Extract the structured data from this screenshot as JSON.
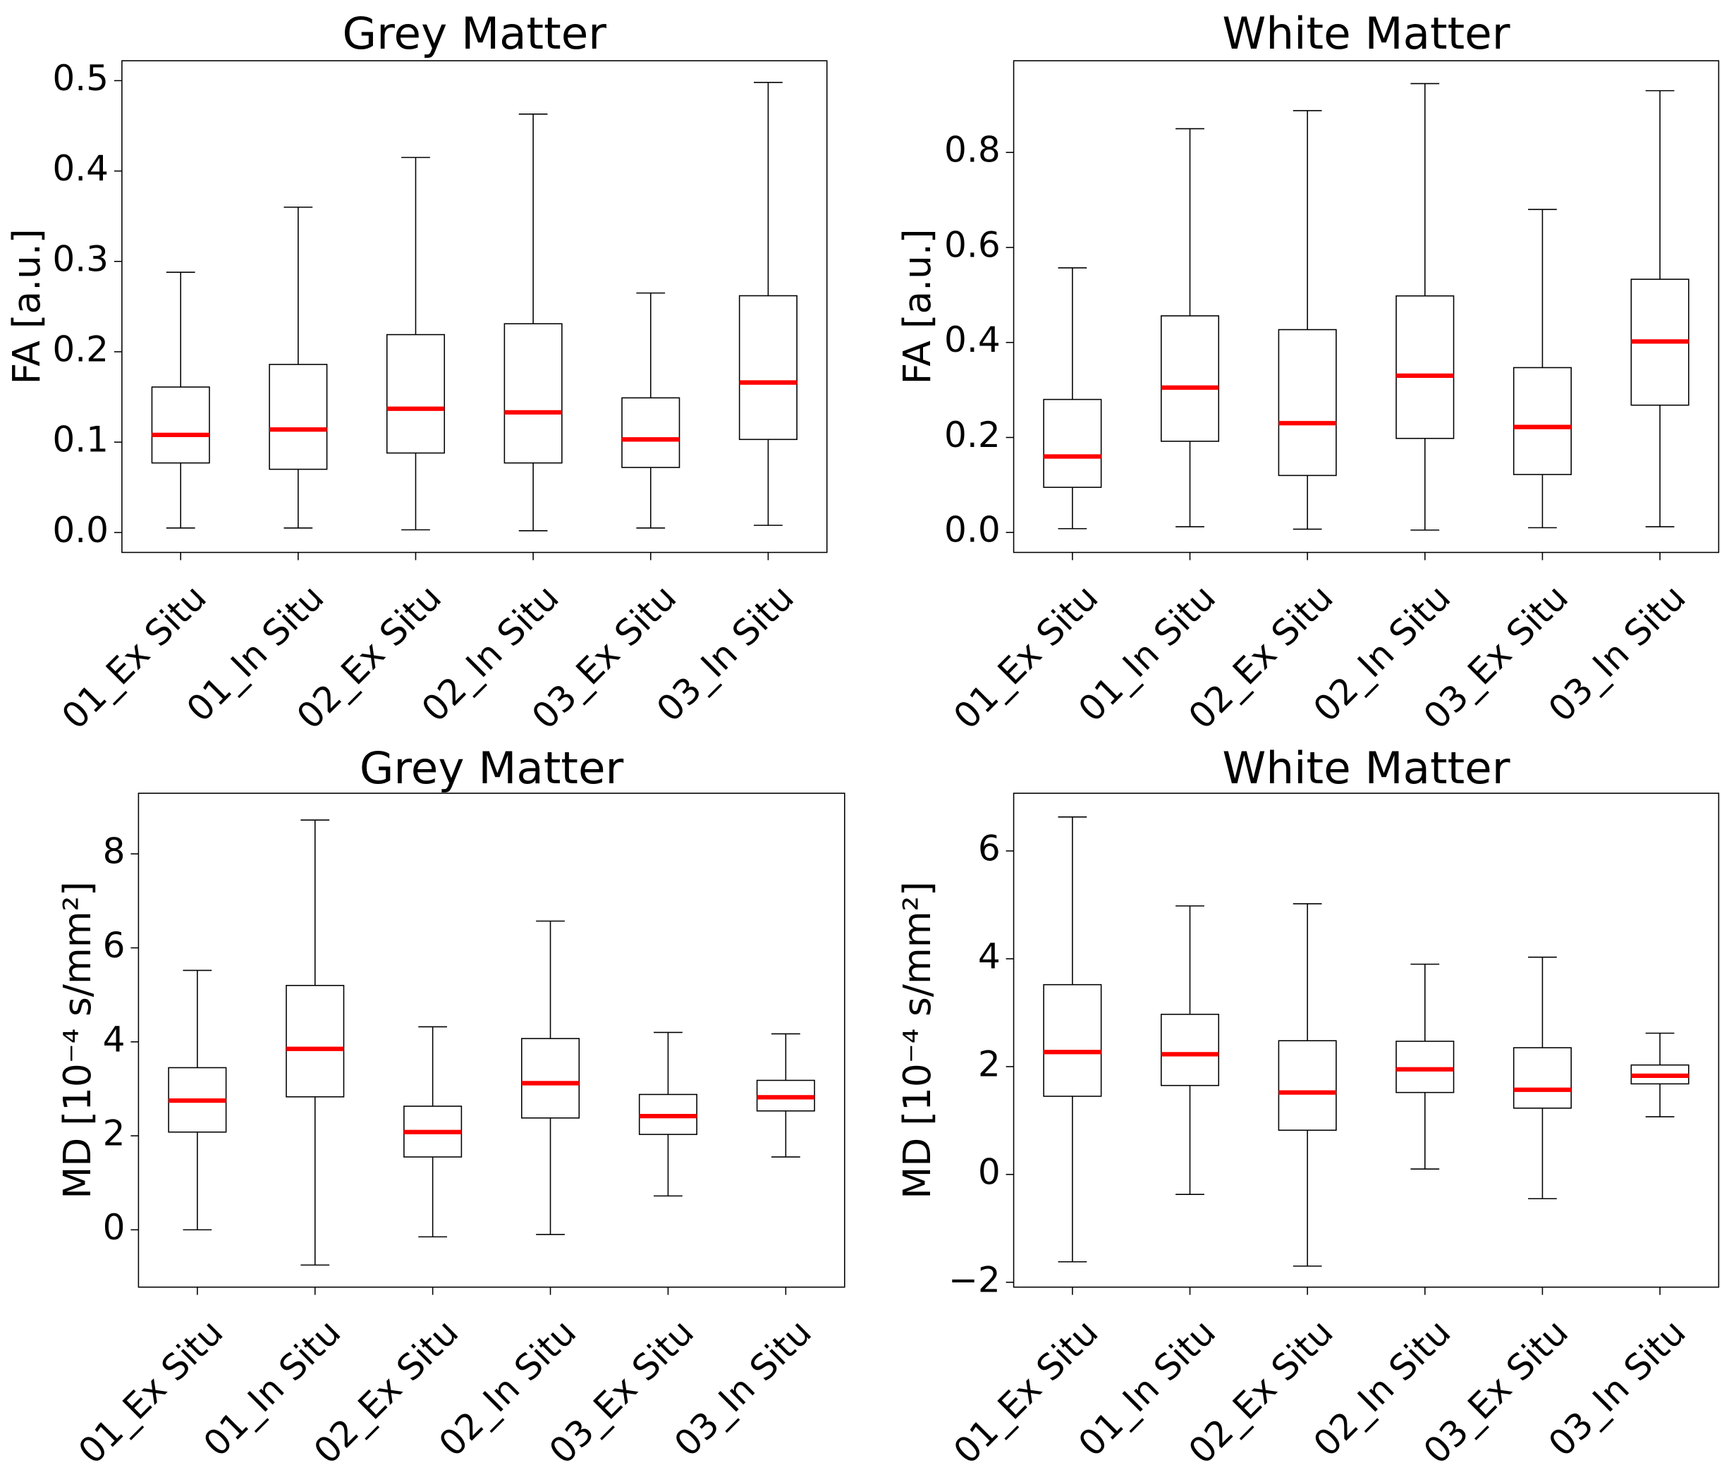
{
  "chart_data": [
    {
      "type": "box",
      "title": "Grey Matter",
      "y_label": "FA [a.u.]",
      "categories": [
        "01_Ex Situ",
        "01_In Situ",
        "02_Ex Situ",
        "02_In Situ",
        "03_Ex Situ",
        "03_In Situ"
      ],
      "box_color": "#000000",
      "median_color": "#ff0000",
      "boxes": [
        {
          "whislo": 0.005,
          "q1": 0.077,
          "med": 0.108,
          "q3": 0.161,
          "whishi": 0.288
        },
        {
          "whislo": 0.005,
          "q1": 0.07,
          "med": 0.114,
          "q3": 0.186,
          "whishi": 0.36
        },
        {
          "whislo": 0.003,
          "q1": 0.088,
          "med": 0.137,
          "q3": 0.219,
          "whishi": 0.415
        },
        {
          "whislo": 0.002,
          "q1": 0.077,
          "med": 0.133,
          "q3": 0.231,
          "whishi": 0.463
        },
        {
          "whislo": 0.005,
          "q1": 0.072,
          "med": 0.103,
          "q3": 0.149,
          "whishi": 0.265
        },
        {
          "whislo": 0.008,
          "q1": 0.103,
          "med": 0.166,
          "q3": 0.262,
          "whishi": 0.498
        }
      ],
      "ylim": [
        -0.022,
        0.522
      ],
      "yticks": [
        {
          "value": 0,
          "label": "0.0"
        },
        0.1,
        0.2,
        0.3,
        0.4,
        0.5
      ]
    },
    {
      "type": "box",
      "title": "White Matter",
      "y_label": "FA [a.u.]",
      "categories": [
        "01_Ex Situ",
        "01_In Situ",
        "02_Ex Situ",
        "02_In Situ",
        "03_Ex Situ",
        "03_In Situ"
      ],
      "box_color": "#000000",
      "median_color": "#ff0000",
      "boxes": [
        {
          "whislo": 0.008,
          "q1": 0.095,
          "med": 0.16,
          "q3": 0.28,
          "whishi": 0.557
        },
        {
          "whislo": 0.012,
          "q1": 0.192,
          "med": 0.305,
          "q3": 0.456,
          "whishi": 0.85
        },
        {
          "whislo": 0.007,
          "q1": 0.12,
          "med": 0.23,
          "q3": 0.427,
          "whishi": 0.888
        },
        {
          "whislo": 0.005,
          "q1": 0.198,
          "med": 0.33,
          "q3": 0.498,
          "whishi": 0.945
        },
        {
          "whislo": 0.01,
          "q1": 0.122,
          "med": 0.222,
          "q3": 0.347,
          "whishi": 0.68
        },
        {
          "whislo": 0.012,
          "q1": 0.268,
          "med": 0.402,
          "q3": 0.533,
          "whishi": 0.93
        }
      ],
      "ylim": [
        -0.042,
        0.993
      ],
      "yticks": [
        {
          "value": 0,
          "label": "0.0"
        },
        0.2,
        0.4,
        0.6,
        0.8
      ]
    },
    {
      "type": "box",
      "title": "Grey Matter",
      "y_label": "MD [10⁻⁴ s/mm²]",
      "categories": [
        "01_Ex Situ",
        "01_In Situ",
        "02_Ex Situ",
        "02_In Situ",
        "03_Ex Situ",
        "03_In Situ"
      ],
      "box_color": "#000000",
      "median_color": "#ff0000",
      "boxes": [
        {
          "whislo": 0.0,
          "q1": 2.08,
          "med": 2.75,
          "q3": 3.45,
          "whishi": 5.52
        },
        {
          "whislo": -0.75,
          "q1": 2.83,
          "med": 3.85,
          "q3": 5.2,
          "whishi": 8.72
        },
        {
          "whislo": -0.15,
          "q1": 1.55,
          "med": 2.08,
          "q3": 2.63,
          "whishi": 4.32
        },
        {
          "whislo": -0.1,
          "q1": 2.38,
          "med": 3.12,
          "q3": 4.07,
          "whishi": 6.57
        },
        {
          "whislo": 0.72,
          "q1": 2.03,
          "med": 2.42,
          "q3": 2.88,
          "whishi": 4.2
        },
        {
          "whislo": 1.55,
          "q1": 2.53,
          "med": 2.82,
          "q3": 3.18,
          "whishi": 4.17
        }
      ],
      "ylim": [
        -1.22,
        9.29
      ],
      "yticks": [
        0,
        2,
        4,
        6,
        8
      ]
    },
    {
      "type": "box",
      "title": "White Matter",
      "y_label": "MD [10⁻⁴ s/mm²]",
      "categories": [
        "01_Ex Situ",
        "01_In Situ",
        "02_Ex Situ",
        "02_In Situ",
        "03_Ex Situ",
        "03_In Situ"
      ],
      "box_color": "#000000",
      "median_color": "#ff0000",
      "boxes": [
        {
          "whislo": -1.62,
          "q1": 1.45,
          "med": 2.27,
          "q3": 3.52,
          "whishi": 6.63
        },
        {
          "whislo": -0.37,
          "q1": 1.65,
          "med": 2.23,
          "q3": 2.97,
          "whishi": 4.98
        },
        {
          "whislo": -1.7,
          "q1": 0.82,
          "med": 1.52,
          "q3": 2.48,
          "whishi": 5.02
        },
        {
          "whislo": 0.1,
          "q1": 1.52,
          "med": 1.95,
          "q3": 2.47,
          "whishi": 3.9
        },
        {
          "whislo": -0.45,
          "q1": 1.23,
          "med": 1.57,
          "q3": 2.35,
          "whishi": 4.03
        },
        {
          "whislo": 1.07,
          "q1": 1.68,
          "med": 1.83,
          "q3": 2.03,
          "whishi": 2.62
        }
      ],
      "ylim": [
        -2.09,
        7.07
      ],
      "yticks": [
        {
          "value": -2,
          "label": "−2"
        },
        0,
        2,
        4,
        6
      ]
    }
  ]
}
